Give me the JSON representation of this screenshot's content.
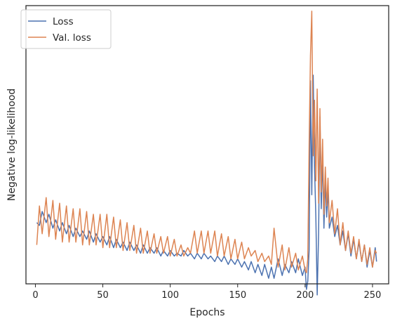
{
  "chart_data": {
    "type": "line",
    "title": "",
    "xlabel": "Epochs",
    "ylabel": "Negative log-likelihood",
    "xlim": [
      -7,
      262
    ],
    "ylim": [
      0,
      100
    ],
    "y_ticks_shown": false,
    "xticks": [
      0,
      50,
      100,
      150,
      200,
      250
    ],
    "xtick_labels": [
      "0",
      "50",
      "100",
      "150",
      "200",
      "250"
    ],
    "grid": false,
    "legend": "top-left",
    "series": [
      {
        "name": "Loss",
        "color": "#4c72b0",
        "x": [
          1,
          3,
          5,
          8,
          10,
          13,
          15,
          18,
          20,
          23,
          25,
          28,
          30,
          33,
          35,
          38,
          40,
          43,
          45,
          48,
          50,
          53,
          55,
          58,
          60,
          63,
          65,
          68,
          70,
          73,
          75,
          78,
          80,
          83,
          85,
          88,
          90,
          93,
          95,
          98,
          100,
          103,
          105,
          108,
          110,
          113,
          115,
          118,
          120,
          123,
          125,
          128,
          130,
          133,
          135,
          138,
          140,
          143,
          145,
          148,
          150,
          153,
          155,
          158,
          160,
          163,
          165,
          168,
          170,
          173,
          175,
          177,
          180,
          183,
          185,
          188,
          190,
          193,
          195,
          198,
          200,
          201,
          202,
          203,
          204,
          205,
          206,
          207,
          208,
          209,
          210,
          211,
          212,
          213,
          214,
          215,
          216,
          217,
          218,
          220,
          222,
          224,
          226,
          228,
          230,
          232,
          234,
          236,
          238,
          240,
          242,
          244,
          246,
          248,
          250,
          252,
          253
        ],
        "y": [
          22,
          21,
          26,
          22,
          25,
          20,
          23,
          19,
          22,
          18,
          21,
          17,
          20,
          17,
          19,
          16,
          19,
          15,
          18,
          15,
          17,
          14,
          17,
          13,
          16,
          13,
          15,
          12,
          15,
          12,
          14,
          11,
          14,
          11,
          13,
          11,
          13,
          10,
          12,
          10,
          12,
          10,
          11,
          10,
          12,
          10,
          11,
          9,
          11,
          9,
          11,
          9,
          10,
          8,
          10,
          8,
          10,
          7,
          9,
          7,
          9,
          6,
          8,
          5,
          8,
          4,
          7,
          3,
          7,
          2,
          6,
          2,
          9,
          3,
          7,
          4,
          8,
          4,
          9,
          3,
          6,
          -2,
          1,
          12,
          73,
          32,
          75,
          42,
          24,
          -4,
          18,
          60,
          27,
          46,
          20,
          37,
          24,
          34,
          20,
          24,
          17,
          21,
          14,
          19,
          12,
          18,
          10,
          16,
          9,
          15,
          8,
          14,
          6,
          12,
          6,
          13,
          8
        ]
      },
      {
        "name": "Val. loss",
        "color": "#dd8452",
        "x": [
          1,
          3,
          5,
          8,
          10,
          13,
          15,
          18,
          20,
          23,
          25,
          28,
          30,
          33,
          35,
          38,
          40,
          43,
          45,
          48,
          50,
          53,
          55,
          58,
          60,
          63,
          65,
          68,
          70,
          73,
          75,
          78,
          80,
          83,
          85,
          88,
          90,
          93,
          95,
          98,
          100,
          103,
          105,
          108,
          110,
          113,
          115,
          118,
          120,
          123,
          125,
          128,
          130,
          133,
          135,
          138,
          140,
          143,
          145,
          148,
          150,
          153,
          155,
          158,
          160,
          163,
          165,
          168,
          170,
          173,
          175,
          177,
          180,
          183,
          185,
          188,
          190,
          193,
          195,
          198,
          200,
          201,
          202,
          203,
          204,
          205,
          206,
          207,
          208,
          209,
          210,
          211,
          212,
          213,
          214,
          215,
          216,
          217,
          218,
          220,
          222,
          224,
          226,
          228,
          230,
          232,
          234,
          236,
          238,
          240,
          242,
          244,
          246,
          248,
          250,
          252,
          253
        ],
        "y": [
          14,
          28,
          18,
          31,
          17,
          30,
          16,
          29,
          15,
          28,
          15,
          27,
          15,
          27,
          14,
          26,
          14,
          25,
          14,
          25,
          13,
          25,
          13,
          24,
          13,
          23,
          12,
          22,
          12,
          21,
          11,
          20,
          11,
          19,
          11,
          18,
          11,
          17,
          11,
          17,
          10,
          16,
          10,
          14,
          10,
          13,
          11,
          19,
          11,
          19,
          11,
          19,
          11,
          19,
          10,
          18,
          10,
          17,
          9,
          16,
          9,
          15,
          9,
          13,
          10,
          12,
          8,
          11,
          8,
          10,
          7,
          20,
          6,
          14,
          5,
          13,
          6,
          11,
          5,
          10,
          5,
          4,
          9,
          50,
          82,
          98,
          46,
          66,
          37,
          70,
          29,
          63,
          33,
          52,
          25,
          42,
          28,
          38,
          22,
          30,
          18,
          27,
          14,
          22,
          12,
          19,
          11,
          17,
          9,
          16,
          8,
          14,
          7,
          13,
          6,
          12,
          11
        ]
      }
    ]
  }
}
